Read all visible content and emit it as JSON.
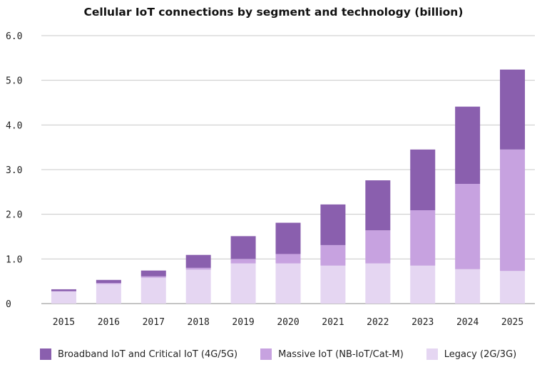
{
  "chart_data": {
    "type": "bar",
    "stacked": true,
    "title": "Cellular IoT connections by segment and technology (billion)",
    "xlabel": "",
    "ylabel": "",
    "ylim": [
      0,
      6
    ],
    "yticks": [
      "0",
      "1.0",
      "2.0",
      "3.0",
      "4.0",
      "5.0",
      "6.0"
    ],
    "grid": true,
    "legend_position": "bottom",
    "categories": [
      "2015",
      "2016",
      "2017",
      "2018",
      "2019",
      "2020",
      "2021",
      "2022",
      "2023",
      "2024",
      "2025"
    ],
    "series": [
      {
        "name": "Legacy (2G/3G)",
        "color": "#e5d6f2",
        "values": [
          0.27,
          0.44,
          0.58,
          0.76,
          0.9,
          0.9,
          0.85,
          0.9,
          0.85,
          0.77,
          0.73
        ]
      },
      {
        "name": "Massive IoT (NB-IoT/Cat-M)",
        "color": "#c7a2e0",
        "values": [
          0.01,
          0.02,
          0.03,
          0.04,
          0.1,
          0.21,
          0.46,
          0.74,
          1.24,
          1.91,
          2.72
        ]
      },
      {
        "name": "Broadband IoT and Critical IoT (4G/5G)",
        "color": "#8a5fae",
        "values": [
          0.04,
          0.07,
          0.13,
          0.29,
          0.51,
          0.7,
          0.91,
          1.12,
          1.36,
          1.73,
          1.79
        ]
      }
    ],
    "legend_order": [
      "Broadband IoT and Critical IoT (4G/5G)",
      "Massive IoT (NB-IoT/Cat-M)",
      "Legacy (2G/3G)"
    ]
  }
}
